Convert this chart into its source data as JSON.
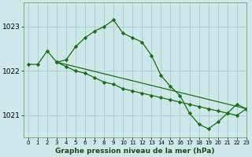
{
  "background_color": "#cce8e8",
  "grid_color": "#aacccc",
  "line_color": "#1a6b1a",
  "marker_color": "#1a6b1a",
  "title": "Graphe pression niveau de la mer (hPa)",
  "xlim": [
    -0.5,
    23
  ],
  "ylim": [
    1020.5,
    1023.55
  ],
  "yticks": [
    1021,
    1022,
    1023
  ],
  "xticks": [
    0,
    1,
    2,
    3,
    4,
    5,
    6,
    7,
    8,
    9,
    10,
    11,
    12,
    13,
    14,
    15,
    16,
    17,
    18,
    19,
    20,
    21,
    22,
    23
  ],
  "line1_x": [
    0,
    1,
    2,
    3,
    4,
    5,
    6,
    7,
    8,
    9,
    10,
    11,
    12,
    13,
    14,
    15,
    16,
    17,
    18,
    19,
    20,
    21,
    22,
    23
  ],
  "line1_y": [
    1022.15,
    1022.15,
    1022.45,
    1022.2,
    1022.25,
    1022.55,
    1022.75,
    1022.9,
    1023.0,
    1023.15,
    1022.85,
    1022.75,
    1022.65,
    1022.35,
    1021.9,
    1021.65,
    1021.45,
    1021.05,
    1020.8,
    1020.7,
    1020.85,
    1021.05,
    1021.25,
    1021.15
  ],
  "line2_x": [
    3,
    4,
    5,
    6,
    7,
    8,
    9,
    10,
    11,
    12,
    13,
    14,
    15,
    16,
    17,
    18,
    19,
    20,
    21,
    22,
    23
  ],
  "line2_y": [
    1022.2,
    1022.1,
    1022.0,
    1021.95,
    1021.85,
    1021.75,
    1021.7,
    1021.6,
    1021.55,
    1021.5,
    1021.45,
    1021.4,
    1021.35,
    1021.3,
    1021.25,
    1021.2,
    1021.15,
    1021.1,
    1021.05,
    1021.0,
    1021.15
  ],
  "line3_x": [
    3,
    23
  ],
  "line3_y": [
    1022.2,
    1021.15
  ]
}
